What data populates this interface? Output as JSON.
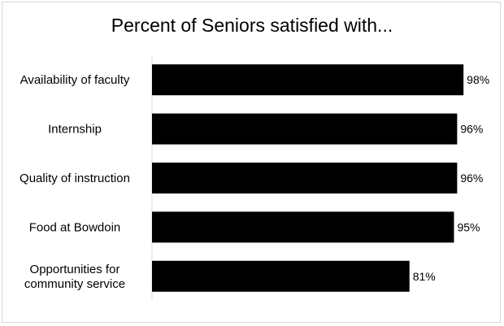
{
  "chart_data": {
    "type": "bar",
    "orientation": "horizontal",
    "title": "Percent of Seniors satisfied with...",
    "categories": [
      [
        "Availability of faculty"
      ],
      [
        "Internship"
      ],
      [
        "Quality of instruction"
      ],
      [
        "Food at Bowdoin"
      ],
      [
        "Opportunities for",
        "community service"
      ]
    ],
    "values": [
      98,
      96,
      96,
      95,
      81
    ],
    "value_labels": [
      "98%",
      "96%",
      "96%",
      "95%",
      "81%"
    ],
    "xlabel": "",
    "ylabel": "",
    "xlim": [
      0,
      100
    ],
    "grid": false,
    "legend": "none",
    "bar_color": "#000000"
  }
}
